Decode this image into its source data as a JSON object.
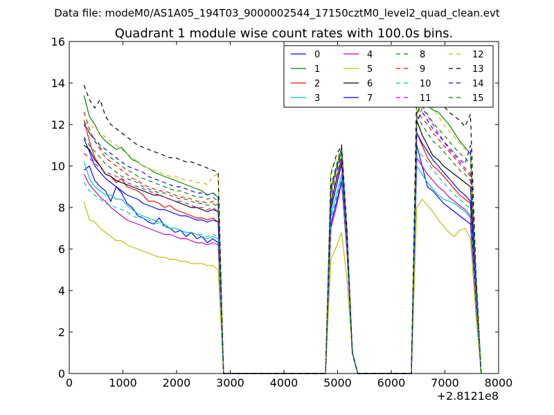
{
  "chart_data": {
    "type": "line",
    "suptitle": "Data file: modeM0/AS1A05_194T03_9000002544_17150cztM0_level2_quad_clean.evt",
    "title": "Quadrant 1 module wise count rates with 100.0s bins.",
    "xlabel": "",
    "ylabel": "",
    "x_offset_label": "+2.8121e8",
    "xlim": [
      0,
      8000
    ],
    "ylim": [
      0,
      16
    ],
    "xticks": [
      0,
      1000,
      2000,
      3000,
      4000,
      5000,
      6000,
      7000,
      8000
    ],
    "yticks": [
      0,
      2,
      4,
      6,
      8,
      10,
      12,
      14,
      16
    ],
    "legend_location": "top-right",
    "legend_columns": 4,
    "segments": [
      {
        "x_start": 275,
        "step": 100,
        "count": 26
      },
      {
        "x_start": 4875,
        "step": 100,
        "count": 5
      },
      {
        "x_start": 6475,
        "step": 100,
        "count": 12
      }
    ],
    "gaps_at_zero": [
      [
        2925,
        4775
      ],
      [
        5375,
        6375
      ]
    ],
    "segment_end_x": [
      2875,
      5375,
      7675
    ],
    "series": [
      {
        "name": "0",
        "color": "#0000ff",
        "dash": "solid",
        "values": [
          9.8,
          10.0,
          9.3,
          9.0,
          8.8,
          8.3,
          9.0,
          8.7,
          8.2,
          8.0,
          7.6,
          7.5,
          7.3,
          7.2,
          7.5,
          7.1,
          7.0,
          6.8,
          6.9,
          6.6,
          6.8,
          6.5,
          6.6,
          6.3,
          6.5,
          6.3,
          7.2,
          8.2,
          9.3,
          6.0,
          1.0,
          11.0,
          10.0,
          9.0,
          8.8,
          8.5,
          8.2,
          8.0,
          7.8,
          7.6,
          7.4,
          7.2,
          3.5
        ]
      },
      {
        "name": "1",
        "color": "#008000",
        "dash": "solid",
        "values": [
          13.4,
          12.4,
          12.0,
          11.5,
          11.2,
          11.0,
          10.8,
          10.9,
          10.6,
          10.3,
          10.2,
          10.0,
          9.9,
          9.7,
          9.6,
          9.5,
          9.4,
          9.3,
          9.2,
          9.1,
          9.0,
          8.9,
          8.8,
          8.6,
          8.7,
          8.5,
          8.8,
          9.8,
          10.7,
          6.5,
          1.0,
          12.5,
          13.2,
          12.9,
          12.7,
          12.6,
          12.3,
          12.0,
          11.6,
          11.2,
          10.9,
          10.6,
          5.0
        ]
      },
      {
        "name": "2",
        "color": "#ff0000",
        "dash": "solid",
        "values": [
          12.2,
          11.2,
          10.4,
          10.0,
          9.6,
          9.5,
          9.2,
          9.4,
          9.0,
          8.9,
          8.8,
          8.6,
          8.3,
          8.3,
          8.2,
          8.0,
          8.1,
          7.9,
          7.8,
          7.7,
          7.6,
          7.5,
          7.5,
          7.4,
          7.5,
          7.3,
          8.0,
          9.0,
          10.2,
          6.2,
          1.0,
          11.6,
          11.0,
          10.4,
          10.0,
          9.8,
          9.5,
          9.2,
          8.9,
          8.6,
          8.4,
          8.2,
          4.0
        ]
      },
      {
        "name": "3",
        "color": "#00bfbf",
        "dash": "solid",
        "values": [
          10.2,
          9.4,
          9.0,
          8.8,
          8.6,
          8.6,
          8.4,
          8.4,
          8.1,
          7.9,
          7.7,
          7.6,
          7.5,
          7.4,
          7.3,
          7.2,
          7.0,
          7.0,
          6.9,
          6.8,
          6.8,
          6.7,
          6.6,
          6.5,
          6.6,
          6.5,
          7.6,
          8.6,
          9.6,
          6.1,
          1.0,
          10.0,
          9.6,
          9.2,
          8.9,
          8.6,
          8.4,
          8.3,
          8.2,
          8.0,
          7.8,
          7.5,
          3.5
        ]
      },
      {
        "name": "4",
        "color": "#bf00bf",
        "dash": "solid",
        "values": [
          9.6,
          9.1,
          8.8,
          8.5,
          8.3,
          8.0,
          7.8,
          7.6,
          7.4,
          7.3,
          7.2,
          7.1,
          7.0,
          6.9,
          6.8,
          6.7,
          6.7,
          6.6,
          6.5,
          6.5,
          6.4,
          6.3,
          6.3,
          6.2,
          6.3,
          6.2,
          7.0,
          8.0,
          9.2,
          5.8,
          1.0,
          10.4,
          10.0,
          9.6,
          9.3,
          9.0,
          8.8,
          8.5,
          8.3,
          8.1,
          7.9,
          7.6,
          3.5
        ]
      },
      {
        "name": "5",
        "color": "#bfbf00",
        "dash": "solid",
        "values": [
          8.3,
          7.4,
          7.3,
          7.0,
          6.8,
          6.6,
          6.4,
          6.4,
          6.2,
          6.1,
          6.0,
          5.9,
          5.8,
          5.7,
          5.6,
          5.6,
          5.5,
          5.5,
          5.4,
          5.4,
          5.3,
          5.3,
          5.3,
          5.2,
          5.2,
          5.0,
          5.5,
          6.1,
          6.8,
          4.5,
          1.0,
          8.0,
          8.4,
          8.1,
          7.8,
          7.4,
          7.1,
          6.8,
          6.6,
          6.9,
          7.0,
          6.5,
          2.9
        ]
      },
      {
        "name": "6",
        "color": "#000000",
        "dash": "solid",
        "values": [
          11.0,
          10.8,
          10.3,
          10.0,
          9.6,
          9.5,
          9.3,
          9.2,
          9.1,
          9.0,
          8.9,
          8.8,
          8.7,
          8.6,
          8.6,
          8.5,
          8.4,
          8.3,
          8.2,
          8.1,
          8.0,
          8.0,
          7.9,
          7.8,
          7.9,
          7.8,
          8.2,
          9.3,
          10.4,
          6.4,
          1.0,
          12.2,
          11.5,
          11.0,
          10.5,
          10.3,
          10.0,
          9.8,
          9.6,
          9.4,
          9.2,
          9.0,
          4.5
        ]
      },
      {
        "name": "7",
        "color": "#0000ff",
        "dash": "solid",
        "values": [
          11.3,
          10.7,
          10.0,
          9.7,
          9.4,
          9.2,
          9.0,
          8.8,
          8.6,
          8.5,
          8.4,
          8.2,
          8.1,
          8.0,
          7.9,
          7.9,
          7.8,
          7.7,
          7.6,
          7.6,
          7.5,
          7.4,
          7.4,
          7.3,
          7.4,
          7.3,
          7.9,
          9.0,
          10.1,
          6.4,
          1.0,
          11.6,
          11.1,
          10.7,
          10.3,
          10.0,
          9.7,
          9.4,
          9.1,
          8.8,
          8.6,
          8.3,
          4.0
        ]
      },
      {
        "name": "8",
        "color": "#008000",
        "dash": "dashed",
        "values": [
          11.4,
          11.0,
          10.7,
          10.4,
          10.1,
          9.9,
          9.7,
          9.5,
          9.4,
          9.3,
          9.2,
          9.0,
          8.9,
          8.8,
          8.7,
          8.7,
          8.6,
          8.5,
          8.4,
          8.4,
          8.3,
          8.2,
          8.2,
          8.1,
          8.2,
          8.0,
          8.6,
          9.6,
          10.6,
          6.6,
          1.0,
          12.4,
          12.0,
          11.6,
          11.2,
          11.0,
          10.7,
          10.4,
          10.1,
          9.8,
          9.6,
          9.3,
          4.6
        ]
      },
      {
        "name": "9",
        "color": "#ff0000",
        "dash": "dashed",
        "values": [
          12.6,
          11.8,
          11.2,
          10.8,
          10.4,
          10.2,
          10.0,
          9.8,
          9.6,
          9.4,
          9.3,
          9.1,
          9.0,
          8.9,
          8.8,
          8.8,
          8.7,
          8.6,
          8.5,
          8.5,
          8.4,
          8.3,
          8.3,
          8.2,
          8.3,
          8.1,
          8.8,
          9.8,
          10.8,
          6.7,
          1.0,
          12.6,
          12.3,
          12.0,
          11.6,
          11.3,
          11.0,
          10.7,
          10.4,
          10.1,
          9.8,
          9.5,
          4.6
        ]
      },
      {
        "name": "10",
        "color": "#00bfbf",
        "dash": "dashed",
        "values": [
          9.2,
          8.8,
          8.6,
          8.4,
          8.2,
          8.1,
          8.0,
          7.9,
          7.8,
          7.6,
          7.5,
          7.5,
          7.4,
          7.3,
          7.2,
          7.1,
          7.0,
          7.0,
          6.9,
          6.8,
          6.8,
          6.7,
          6.7,
          6.6,
          6.7,
          6.6,
          7.4,
          8.4,
          9.4,
          6.0,
          1.0,
          10.8,
          10.5,
          10.2,
          9.8,
          9.5,
          9.2,
          8.9,
          8.6,
          8.4,
          8.2,
          7.9,
          3.8
        ]
      },
      {
        "name": "11",
        "color": "#bf00bf",
        "dash": "dashed",
        "values": [
          10.6,
          10.4,
          10.1,
          9.9,
          9.7,
          9.6,
          9.5,
          9.4,
          9.2,
          9.1,
          9.0,
          8.9,
          8.8,
          8.7,
          8.6,
          8.5,
          8.4,
          8.3,
          8.3,
          8.2,
          8.1,
          8.0,
          8.0,
          7.9,
          8.0,
          7.8,
          8.4,
          9.4,
          10.4,
          6.5,
          1.0,
          12.0,
          12.8,
          12.4,
          12.0,
          11.6,
          11.2,
          10.8,
          10.5,
          10.2,
          9.9,
          9.6,
          4.6
        ]
      },
      {
        "name": "12",
        "color": "#bfbf00",
        "dash": "dashed",
        "values": [
          12.1,
          12.0,
          11.8,
          11.6,
          11.4,
          11.2,
          11.0,
          10.8,
          10.6,
          10.4,
          10.2,
          10.0,
          9.9,
          9.8,
          9.7,
          9.6,
          9.5,
          9.5,
          9.4,
          9.3,
          9.3,
          9.2,
          9.2,
          9.1,
          9.5,
          9.6,
          9.8,
          10.3,
          10.8,
          6.8,
          1.0,
          12.8,
          13.6,
          13.2,
          12.8,
          12.4,
          12.0,
          11.7,
          11.4,
          11.1,
          10.8,
          10.5,
          4.8
        ]
      },
      {
        "name": "13",
        "color": "#000000",
        "dash": "dashed",
        "values": [
          13.9,
          13.2,
          12.8,
          13.2,
          12.4,
          12.0,
          11.8,
          11.6,
          11.4,
          11.2,
          11.0,
          10.9,
          10.8,
          10.7,
          10.6,
          10.5,
          10.4,
          10.4,
          10.3,
          10.2,
          10.2,
          10.1,
          10.0,
          9.9,
          9.8,
          9.7,
          9.6,
          10.5,
          11.0,
          7.0,
          1.0,
          13.9,
          13.6,
          13.3,
          13.1,
          13.4,
          12.9,
          12.6,
          12.4,
          12.2,
          11.9,
          12.5,
          5.1
        ]
      },
      {
        "name": "14",
        "color": "#0000ff",
        "dash": "dashed",
        "values": [
          12.0,
          11.6,
          11.3,
          11.0,
          10.8,
          10.6,
          10.4,
          10.2,
          10.0,
          9.9,
          9.8,
          9.7,
          9.5,
          9.4,
          9.3,
          9.2,
          9.1,
          9.0,
          9.0,
          8.9,
          8.8,
          8.7,
          8.7,
          8.6,
          8.7,
          8.5,
          9.0,
          10.0,
          10.9,
          6.8,
          1.0,
          12.2,
          12.6,
          12.2,
          11.8,
          11.5,
          11.2,
          10.9,
          10.6,
          10.3,
          10.1,
          11.0,
          4.7
        ]
      },
      {
        "name": "15",
        "color": "#008000",
        "dash": "dashed",
        "values": [
          12.2,
          11.6,
          11.2,
          10.9,
          10.6,
          10.4,
          10.2,
          10.0,
          9.8,
          9.7,
          9.5,
          9.4,
          9.3,
          9.2,
          9.1,
          9.0,
          8.9,
          8.8,
          8.8,
          8.7,
          8.6,
          8.5,
          8.5,
          8.4,
          8.5,
          8.3,
          8.9,
          9.9,
          10.9,
          6.8,
          1.0,
          12.5,
          12.9,
          12.5,
          12.1,
          11.8,
          11.5,
          11.2,
          10.9,
          10.6,
          10.4,
          10.1,
          4.8
        ]
      }
    ]
  }
}
